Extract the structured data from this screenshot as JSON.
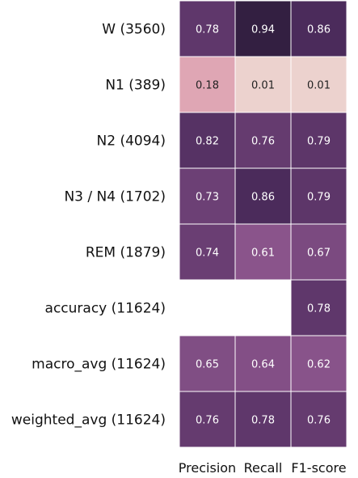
{
  "chart_data": {
    "type": "heatmap",
    "rows": [
      "W (3560)",
      "N1 (389)",
      "N2 (4094)",
      "N3 / N4 (1702)",
      "REM (1879)",
      "accuracy (11624)",
      "macro_avg (11624)",
      "weighted_avg (11624)"
    ],
    "columns": [
      "Precision",
      "Recall",
      "F1-score"
    ],
    "values": [
      [
        0.78,
        0.94,
        0.86
      ],
      [
        0.18,
        0.01,
        0.01
      ],
      [
        0.82,
        0.76,
        0.79
      ],
      [
        0.73,
        0.86,
        0.79
      ],
      [
        0.74,
        0.61,
        0.67
      ],
      [
        null,
        null,
        0.78
      ],
      [
        0.65,
        0.64,
        0.62
      ],
      [
        0.76,
        0.78,
        0.76
      ]
    ],
    "value_labels": [
      [
        "0.78",
        "0.94",
        "0.86"
      ],
      [
        "0.18",
        "0.01",
        "0.01"
      ],
      [
        "0.82",
        "0.76",
        "0.79"
      ],
      [
        "0.73",
        "0.86",
        "0.79"
      ],
      [
        "0.74",
        "0.61",
        "0.67"
      ],
      [
        "",
        "",
        "0.78"
      ],
      [
        "0.65",
        "0.64",
        "0.62"
      ],
      [
        "0.76",
        "0.78",
        "0.76"
      ]
    ],
    "colormap": "cubehelix (light pink to dark purple)",
    "value_range": [
      0,
      1
    ],
    "colorbar": false,
    "cell_borders": "#ffffff"
  }
}
